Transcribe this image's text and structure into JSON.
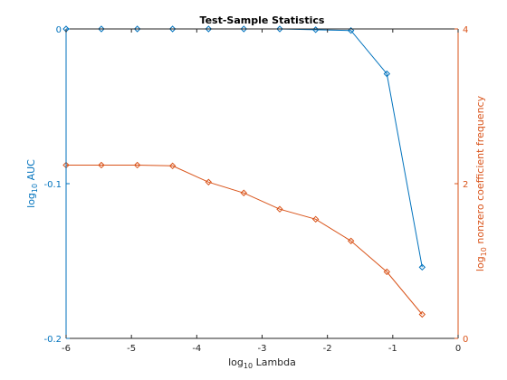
{
  "chart_data": {
    "type": "line",
    "title": "Test-Sample Statistics",
    "xlabel": {
      "prefix": "log",
      "subscript": "10",
      "suffix": " Lambda"
    },
    "ylabel_left": {
      "prefix": "log",
      "subscript": "10",
      "suffix": " AUC"
    },
    "ylabel_right": {
      "prefix": "log",
      "subscript": "10",
      "suffix": " nonzero coefficient frequency"
    },
    "xlim": [
      -6,
      0
    ],
    "ylim_left": [
      -0.2,
      0
    ],
    "ylim_right": [
      0,
      4
    ],
    "xticks": [
      -6,
      -5,
      -4,
      -3,
      -2,
      -1,
      0
    ],
    "yticks_left": [
      -0.2,
      -0.1,
      0
    ],
    "yticks_left_labels": [
      "-0.2",
      "-0.1",
      "0"
    ],
    "yticks_right": [
      0,
      2,
      4
    ],
    "grid": false,
    "legend": "none",
    "series": [
      {
        "axis": "left",
        "color": "#0072BD",
        "marker": "diamond",
        "x": [
          -6.0,
          -5.46,
          -4.91,
          -4.37,
          -3.82,
          -3.28,
          -2.73,
          -2.18,
          -1.64,
          -1.09,
          -0.55
        ],
        "y": [
          0.0,
          0.0,
          0.0,
          0.0,
          0.0,
          0.0,
          0.0,
          -0.0005,
          -0.001,
          -0.029,
          -0.154
        ]
      },
      {
        "axis": "right",
        "color": "#D95319",
        "marker": "diamond",
        "x": [
          -6.0,
          -5.46,
          -4.91,
          -4.37,
          -3.82,
          -3.28,
          -2.73,
          -2.18,
          -1.64,
          -1.09,
          -0.55
        ],
        "y": [
          2.24,
          2.24,
          2.24,
          2.23,
          2.02,
          1.88,
          1.67,
          1.54,
          1.26,
          0.86,
          0.31
        ]
      }
    ]
  }
}
